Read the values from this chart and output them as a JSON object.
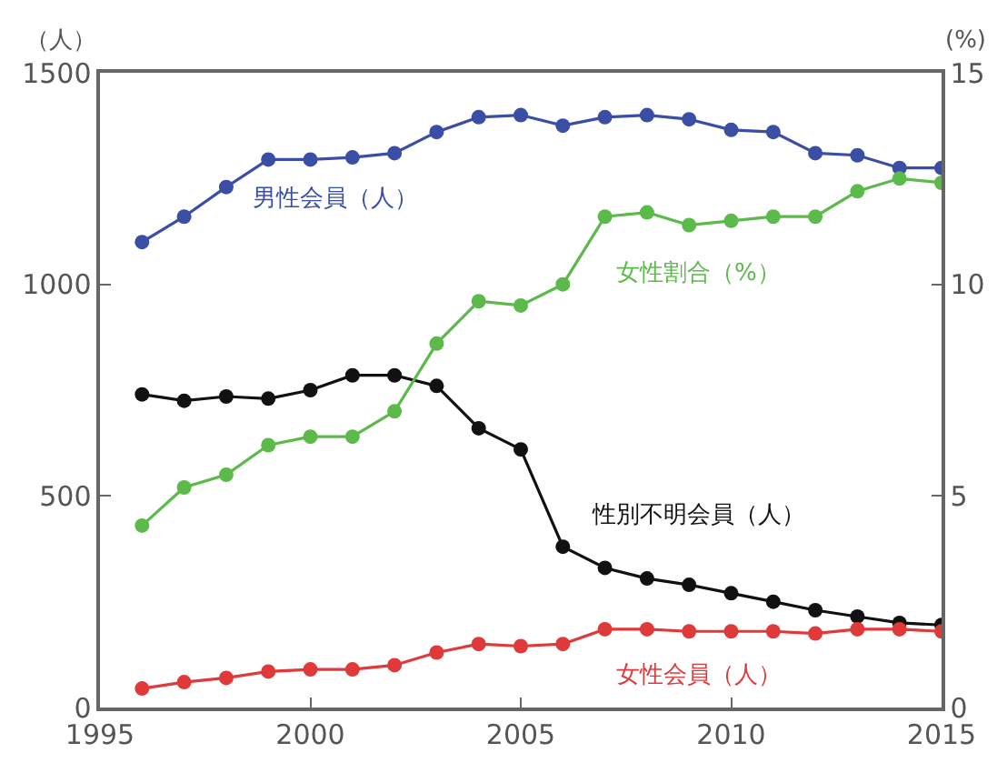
{
  "chart_data": {
    "type": "line",
    "ylabel": "（人）",
    "y2label": "(%)",
    "x": [
      1996,
      1997,
      1998,
      1999,
      2000,
      2001,
      2002,
      2003,
      2004,
      2005,
      2006,
      2007,
      2008,
      2009,
      2010,
      2011,
      2012,
      2013,
      2014,
      2015
    ],
    "series": [
      {
        "name": "男性会員（人）",
        "color": "#3b4ea6",
        "values": [
          1100,
          1160,
          1230,
          1295,
          1295,
          1300,
          1310,
          1360,
          1395,
          1400,
          1375,
          1395,
          1400,
          1390,
          1365,
          1360,
          1310,
          1305,
          1275,
          1275
        ]
      },
      {
        "name": "女性割合（%）",
        "color": "#5cba4a",
        "axis": "y2",
        "values": [
          4.3,
          5.2,
          5.5,
          6.2,
          6.4,
          6.4,
          7.0,
          8.6,
          9.6,
          9.5,
          10.0,
          11.6,
          11.7,
          11.4,
          11.5,
          11.6,
          11.6,
          12.2,
          12.5,
          12.4
        ]
      },
      {
        "name": "性別不明会員（人）",
        "color": "#111111",
        "values": [
          740,
          725,
          735,
          730,
          750,
          785,
          785,
          760,
          660,
          610,
          380,
          330,
          305,
          290,
          270,
          250,
          230,
          215,
          200,
          195
        ]
      },
      {
        "name": "女性会員（人）",
        "color": "#e0393a",
        "values": [
          45,
          60,
          70,
          85,
          90,
          90,
          100,
          130,
          150,
          145,
          150,
          185,
          185,
          180,
          180,
          180,
          175,
          185,
          185,
          180
        ]
      }
    ],
    "xlim": [
      1995,
      2015
    ],
    "xticks": [
      1995,
      2000,
      2005,
      2010,
      2015
    ],
    "ylim": [
      0,
      1500
    ],
    "yticks": [
      0,
      500,
      1000,
      1500
    ],
    "y2lim": [
      0,
      15
    ],
    "y2ticks": [
      0,
      5,
      10,
      15
    ],
    "marker": "circle",
    "line_style": "solid",
    "legend": false
  }
}
